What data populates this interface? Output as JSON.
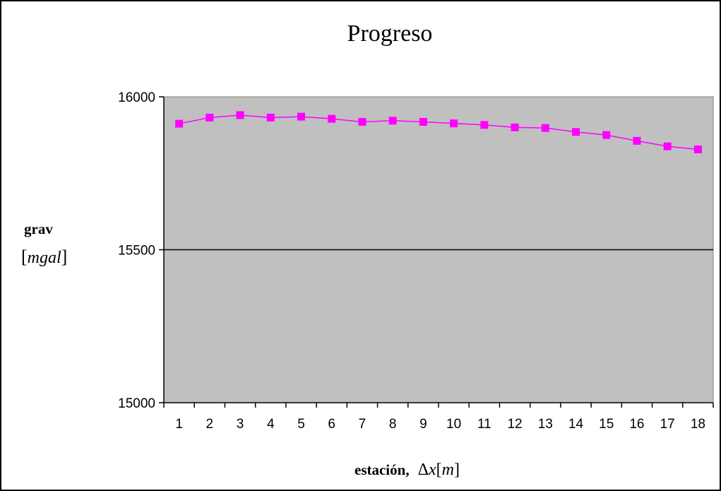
{
  "chart_data": {
    "type": "line",
    "title": "Progreso",
    "xlabel": {
      "word": "estación,",
      "delta": "Δ",
      "var": "x",
      "open_bracket": "[",
      "unit": "m",
      "close_bracket": "]"
    },
    "ylabel": {
      "word": "grav",
      "open_bracket": "[",
      "unit": "mgal",
      "close_bracket": "]"
    },
    "categories": [
      "1",
      "2",
      "3",
      "4",
      "5",
      "6",
      "7",
      "8",
      "9",
      "10",
      "11",
      "12",
      "13",
      "14",
      "15",
      "16",
      "17",
      "18"
    ],
    "series": [
      {
        "values": [
          15912,
          15932,
          15940,
          15932,
          15935,
          15928,
          15918,
          15922,
          15918,
          15913,
          15908,
          15900,
          15898,
          15885,
          15875,
          15856,
          15838,
          15828
        ]
      }
    ],
    "ylim": [
      15000,
      16000
    ],
    "yticks": [
      15000,
      15500,
      16000
    ],
    "gridlines": [
      15500
    ],
    "grid": true,
    "legend": "none",
    "colors": {
      "plot_background": "#c0c0c0",
      "series": "#ff00ff",
      "axis": "#000000"
    }
  }
}
